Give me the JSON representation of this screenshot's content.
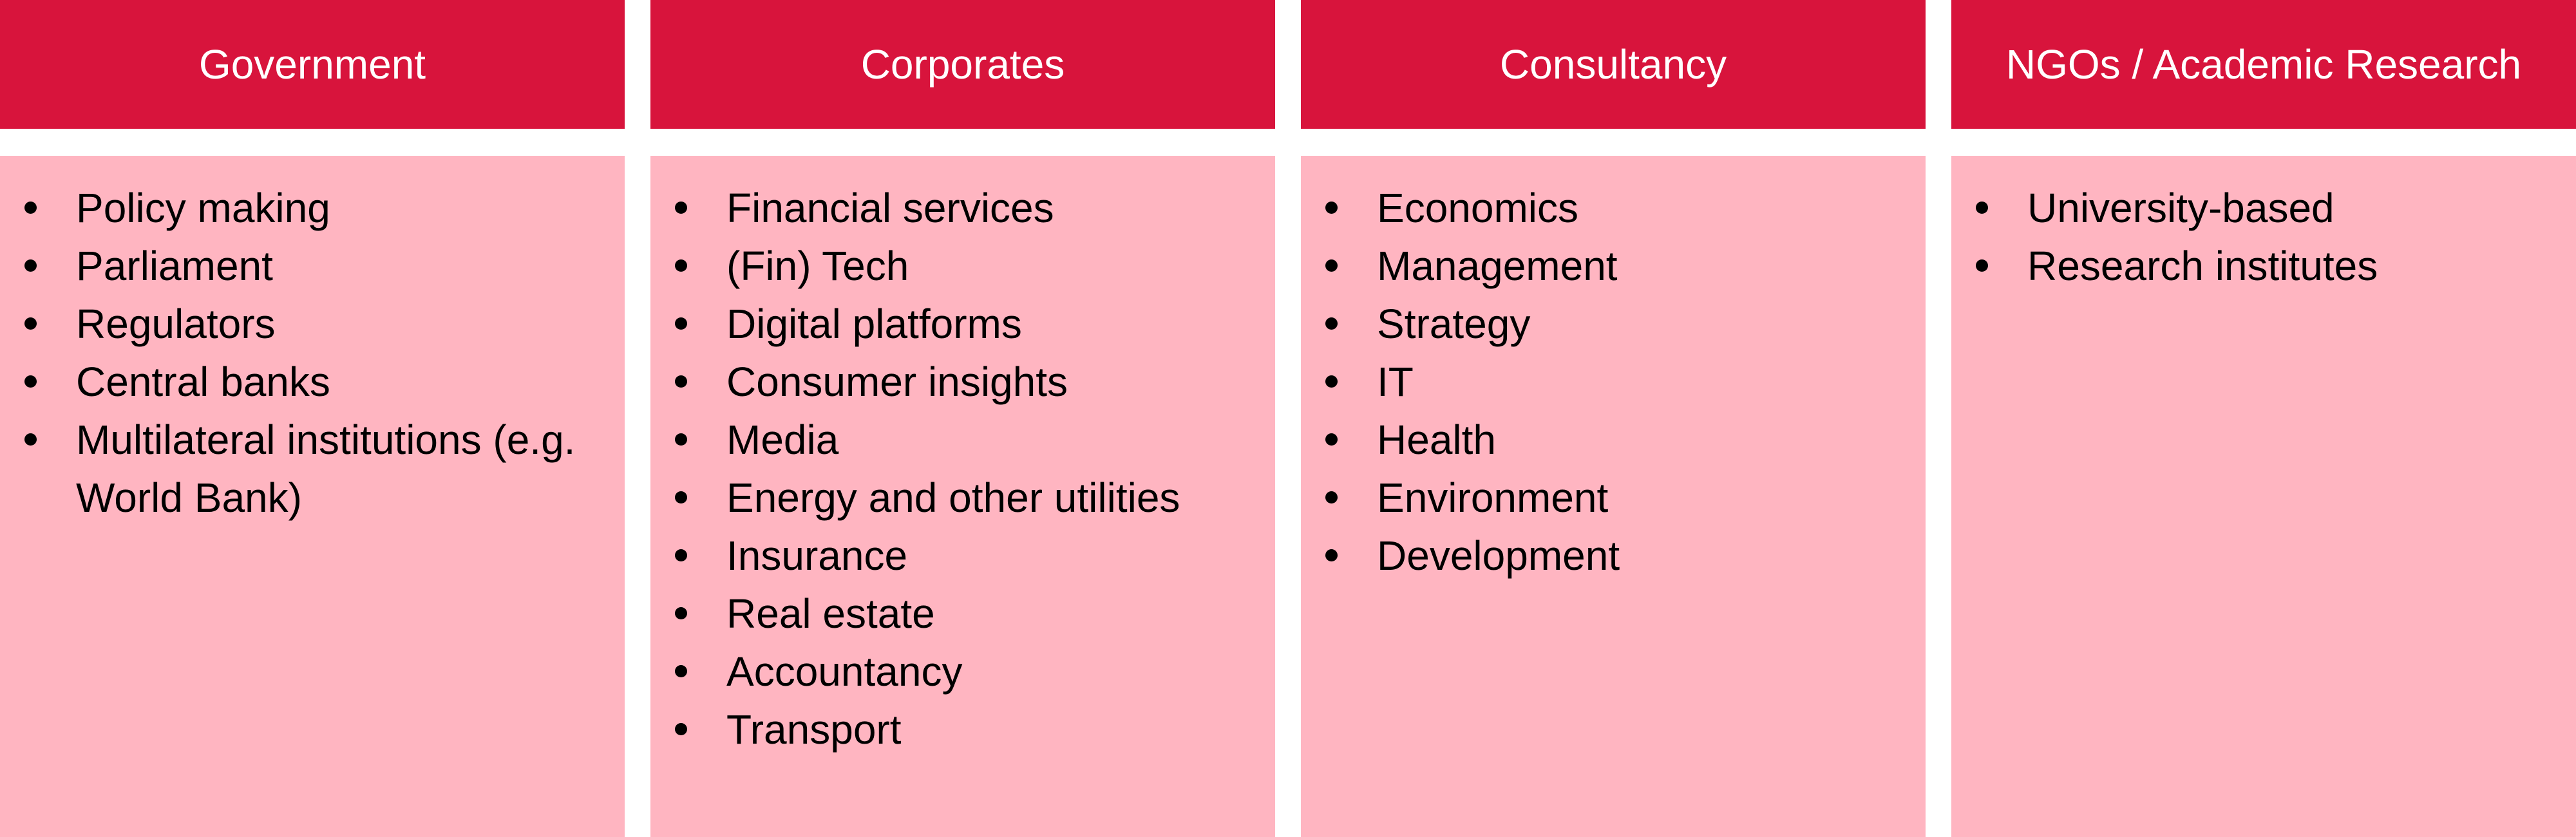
{
  "colors": {
    "header_bg": "#D8143C",
    "panel_bg": "#FFB5C1",
    "header_text": "#FFFFFF",
    "item_text": "#000000",
    "page_bg": "#FFFFFF"
  },
  "columns": [
    {
      "title": "Government",
      "items": [
        "Policy making",
        "Parliament",
        "Regulators",
        "Central banks",
        "Multilateral institutions (e.g. World Bank)"
      ]
    },
    {
      "title": "Corporates",
      "items": [
        "Financial services",
        "(Fin) Tech",
        "Digital platforms",
        "Consumer insights",
        "Media",
        "Energy and other utilities",
        "Insurance",
        "Real estate",
        "Accountancy",
        "Transport"
      ]
    },
    {
      "title": "Consultancy",
      "items": [
        "Economics",
        "Management",
        "Strategy",
        "IT",
        "Health",
        "Environment",
        "Development"
      ]
    },
    {
      "title": "NGOs / Academic Research",
      "items": [
        "University-based",
        "Research institutes"
      ]
    }
  ]
}
